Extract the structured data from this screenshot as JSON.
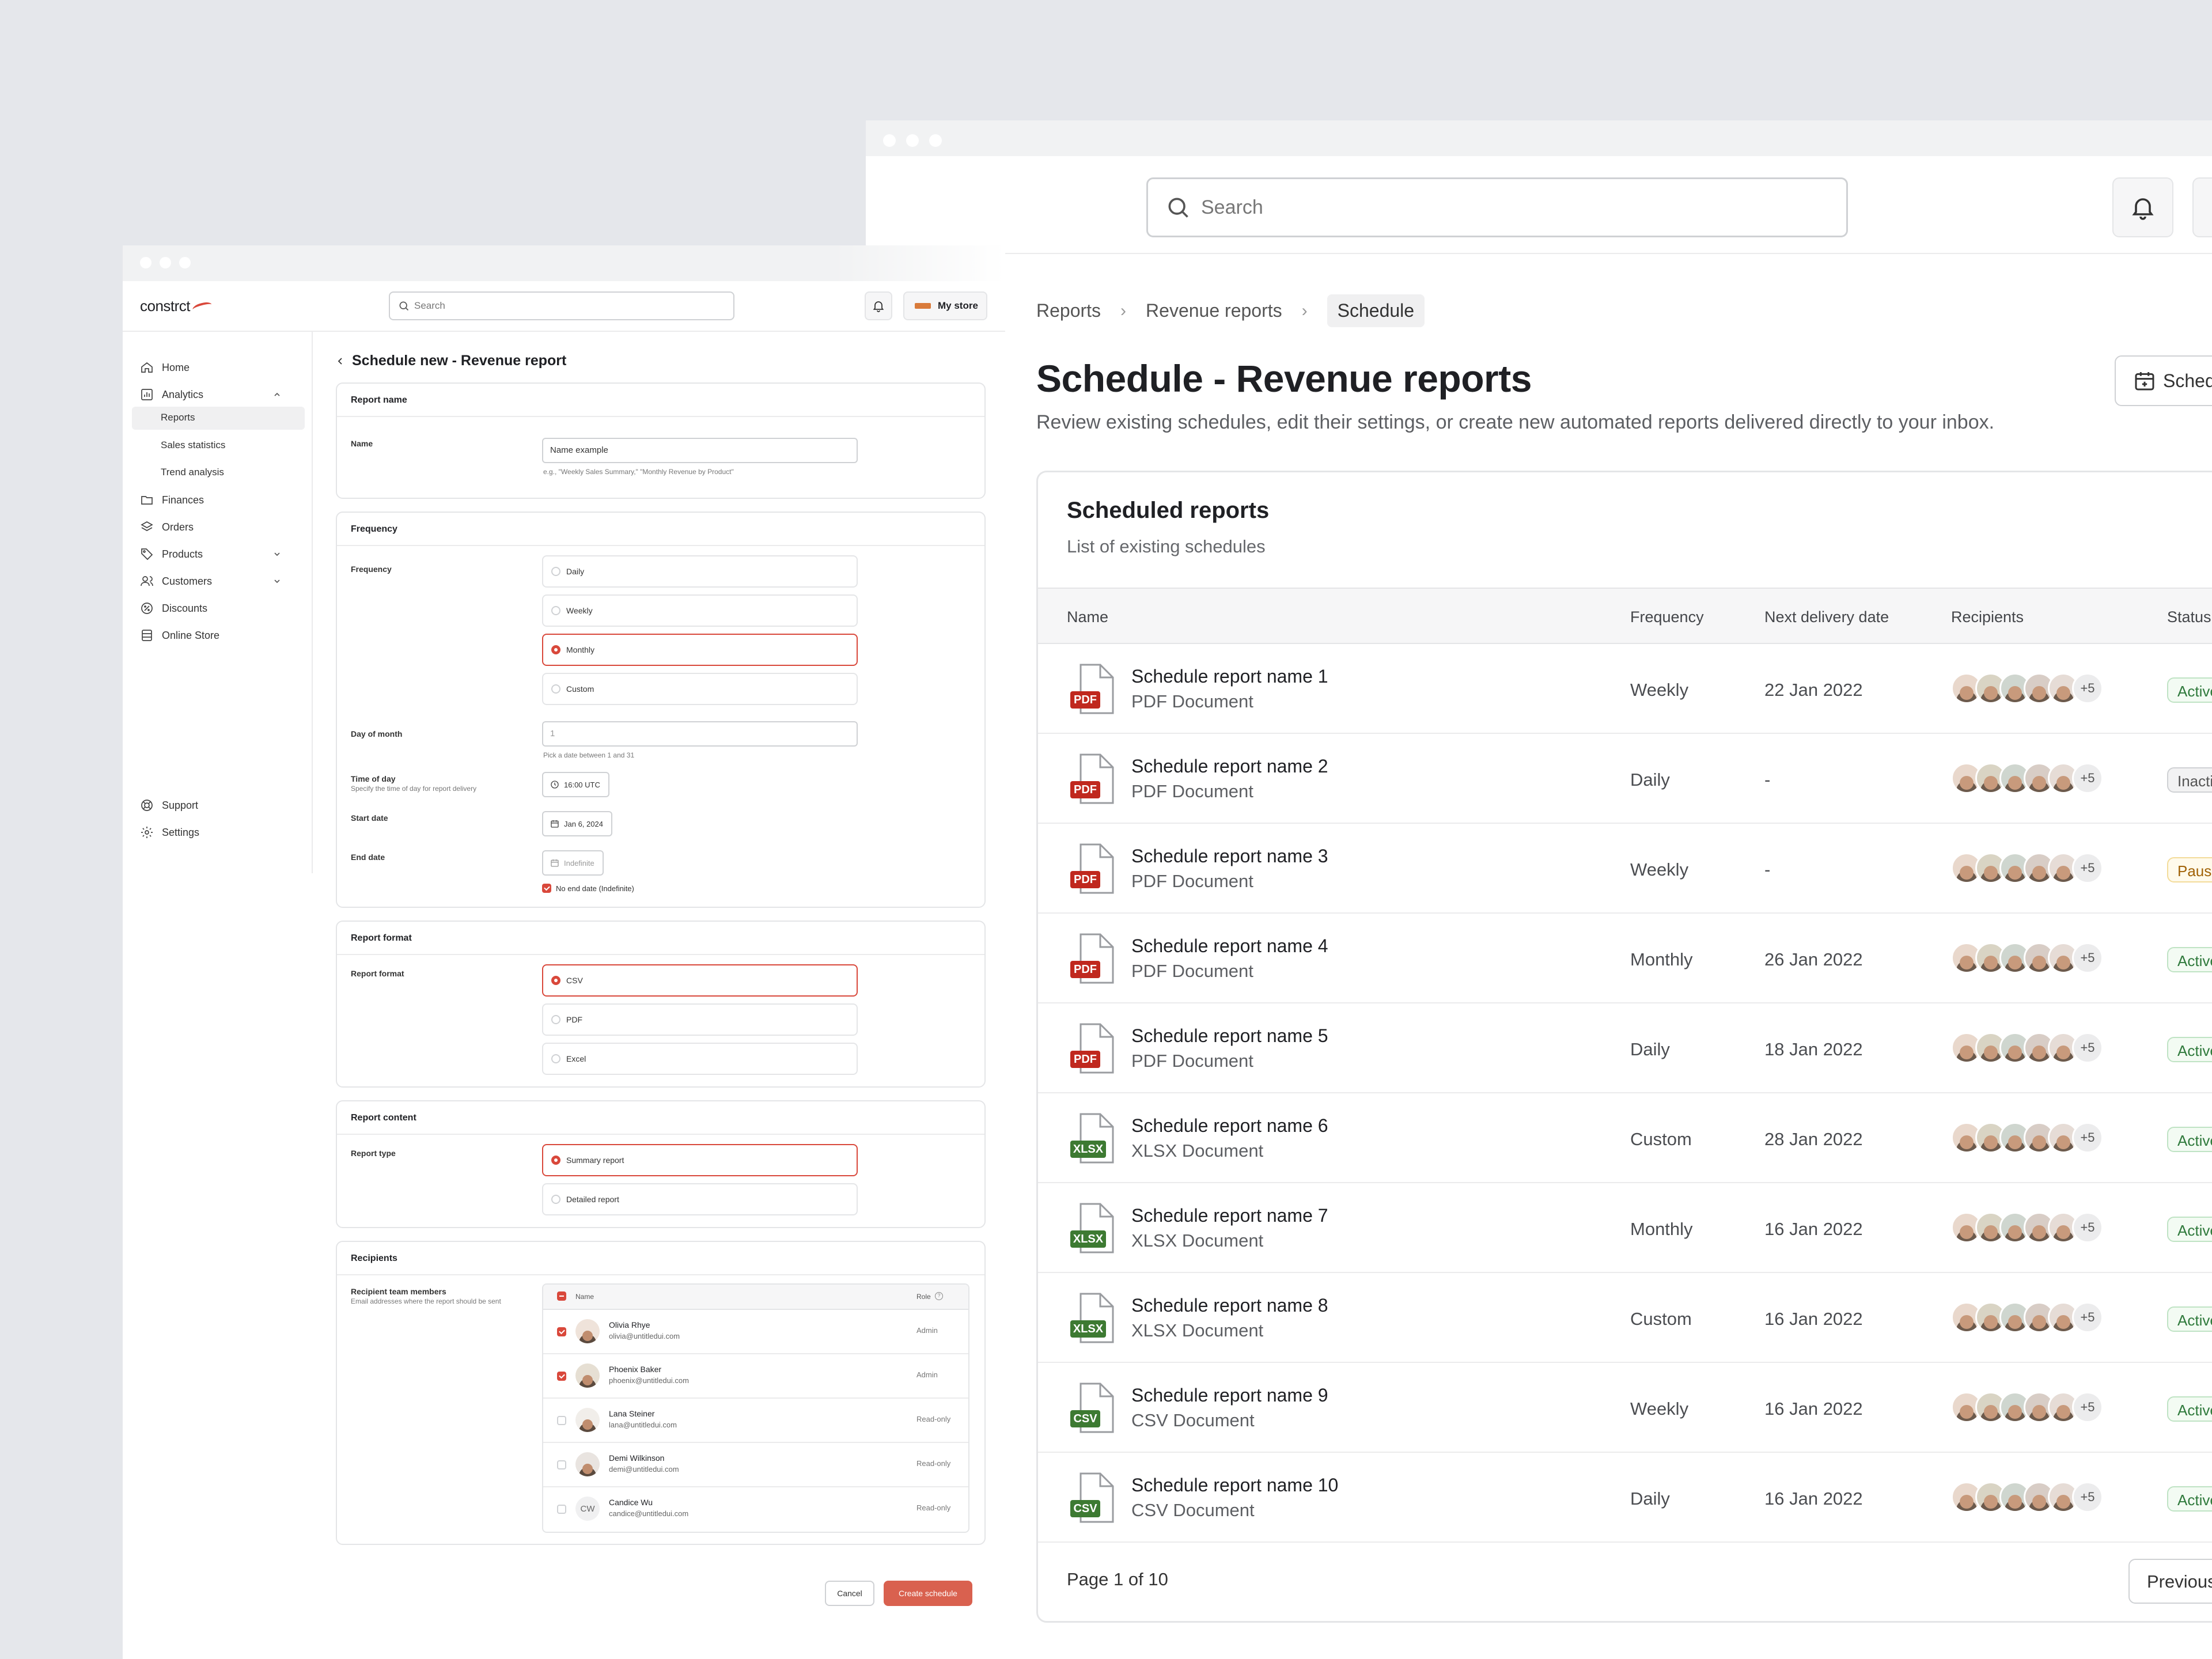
{
  "back": {
    "search_placeholder": "Search",
    "breadcrumbs": [
      "Reports",
      "Revenue reports",
      "Schedule"
    ],
    "title": "Schedule - Revenue reports",
    "description": "Review existing schedules, edit their settings, or create new automated reports delivered directly to your inbox.",
    "schedule_button": "Schedule",
    "card_title": "Scheduled reports",
    "card_subtitle": "List of existing schedules",
    "columns": [
      "Name",
      "Frequency",
      "Next delivery date",
      "Recipients",
      "Status"
    ],
    "rows": [
      {
        "name": "Schedule report name 1",
        "type": "PDF Document",
        "badge": "PDF",
        "frequency": "Weekly",
        "next": "22 Jan 2022",
        "more": "+5",
        "status": "Active"
      },
      {
        "name": "Schedule report name 2",
        "type": "PDF Document",
        "badge": "PDF",
        "frequency": "Daily",
        "next": "-",
        "more": "+5",
        "status": "Inactive"
      },
      {
        "name": "Schedule report name 3",
        "type": "PDF Document",
        "badge": "PDF",
        "frequency": "Weekly",
        "next": "-",
        "more": "+5",
        "status": "Paused"
      },
      {
        "name": "Schedule report name 4",
        "type": "PDF Document",
        "badge": "PDF",
        "frequency": "Monthly",
        "next": "26 Jan 2022",
        "more": "+5",
        "status": "Active"
      },
      {
        "name": "Schedule report name 5",
        "type": "PDF Document",
        "badge": "PDF",
        "frequency": "Daily",
        "next": "18 Jan 2022",
        "more": "+5",
        "status": "Active"
      },
      {
        "name": "Schedule report name 6",
        "type": "XLSX Document",
        "badge": "XLSX",
        "frequency": "Custom",
        "next": "28 Jan 2022",
        "more": "+5",
        "status": "Active"
      },
      {
        "name": "Schedule report name 7",
        "type": "XLSX Document",
        "badge": "XLSX",
        "frequency": "Monthly",
        "next": "16 Jan 2022",
        "more": "+5",
        "status": "Active"
      },
      {
        "name": "Schedule report name 8",
        "type": "XLSX Document",
        "badge": "XLSX",
        "frequency": "Custom",
        "next": "16 Jan 2022",
        "more": "+5",
        "status": "Active"
      },
      {
        "name": "Schedule report name 9",
        "type": "CSV Document",
        "badge": "CSV",
        "frequency": "Weekly",
        "next": "16 Jan 2022",
        "more": "+5",
        "status": "Active"
      },
      {
        "name": "Schedule report name 10",
        "type": "CSV Document",
        "badge": "CSV",
        "frequency": "Daily",
        "next": "16 Jan 2022",
        "more": "+5",
        "status": "Active"
      }
    ],
    "page_info": "Page 1 of 10",
    "previous_button": "Previous"
  },
  "front": {
    "logo": "constrct",
    "search_placeholder": "Search",
    "store_label": "My store",
    "nav": {
      "home": "Home",
      "analytics": "Analytics",
      "reports": "Reports",
      "sales_statistics": "Sales statistics",
      "trend_analysis": "Trend analysis",
      "finances": "Finances",
      "orders": "Orders",
      "products": "Products",
      "customers": "Customers",
      "discounts": "Discounts",
      "online_store": "Online Store",
      "support": "Support",
      "settings": "Settings"
    },
    "page_title": "Schedule new - Revenue report",
    "report_name": {
      "section": "Report name",
      "label": "Name",
      "value": "Name example",
      "hint": "e.g., \"Weekly Sales Summary,\" \"Monthly Revenue by Product\""
    },
    "frequency": {
      "section": "Frequency",
      "label": "Frequency",
      "options": [
        "Daily",
        "Weekly",
        "Monthly",
        "Custom"
      ],
      "selected": "Monthly",
      "day_label": "Day of month",
      "day_value": "1",
      "day_hint": "Pick a date between 1 and 31",
      "time_label": "Time of day",
      "time_hint": "Specify the time of day for report delivery",
      "time_value": "16:00 UTC",
      "start_label": "Start date",
      "start_value": "Jan 6, 2024",
      "end_label": "End date",
      "end_value": "Indefinite",
      "no_end_label": "No end date (Indefinite)"
    },
    "format": {
      "section": "Report format",
      "label": "Report format",
      "options": [
        "CSV",
        "PDF",
        "Excel"
      ],
      "selected": "CSV"
    },
    "content": {
      "section": "Report content",
      "label": "Report type",
      "options": [
        "Summary report",
        "Detailed report"
      ],
      "selected": "Summary report"
    },
    "recipients": {
      "section": "Recipients",
      "label": "Recipient team members",
      "hint": "Email addresses where the report should be sent",
      "col_name": "Name",
      "col_role": "Role",
      "people": [
        {
          "name": "Olivia Rhye",
          "email": "olivia@untitledui.com",
          "role": "Admin",
          "checked": true
        },
        {
          "name": "Phoenix Baker",
          "email": "phoenix@untitledui.com",
          "role": "Admin",
          "checked": true
        },
        {
          "name": "Lana Steiner",
          "email": "lana@untitledui.com",
          "role": "Read-only",
          "checked": false
        },
        {
          "name": "Demi Wilkinson",
          "email": "demi@untitledui.com",
          "role": "Read-only",
          "checked": false
        },
        {
          "name": "Candice Wu",
          "email": "candice@untitledui.com",
          "role": "Read-only",
          "checked": false,
          "initials": "CW"
        }
      ]
    },
    "cancel_button": "Cancel",
    "create_button": "Create schedule"
  },
  "colors": {
    "accent": "#d9483b",
    "pdf_badge": "#c0281e",
    "xlsx_badge": "#3d7a32",
    "csv_badge": "#3d7a32"
  }
}
